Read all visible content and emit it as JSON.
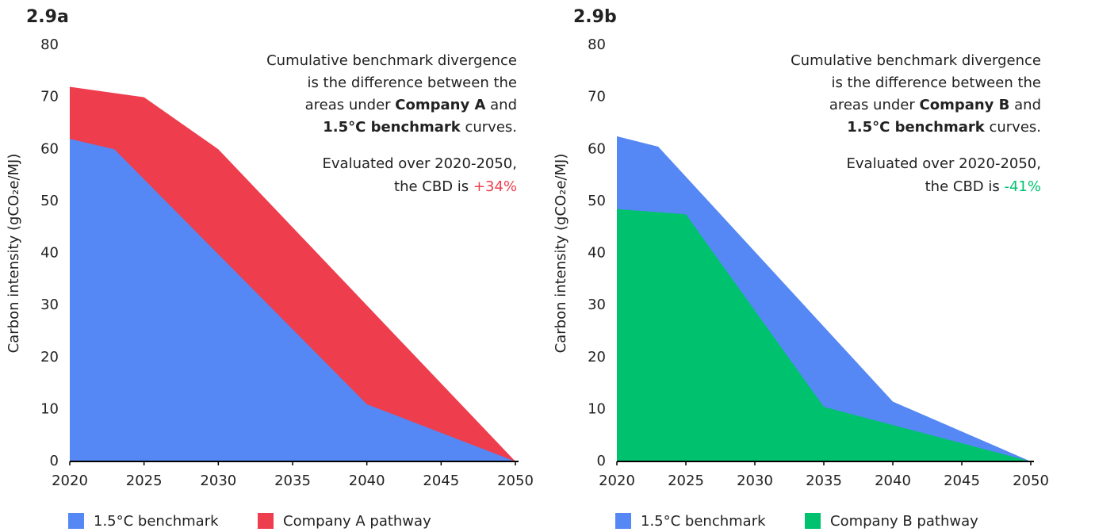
{
  "chart_data": [
    {
      "type": "area",
      "title": "2.9a",
      "ylabel": "Carbon intensity (gCO₂e/MJ)",
      "xlim": [
        2020,
        2050
      ],
      "xticks": [
        2020,
        2025,
        2030,
        2035,
        2040,
        2045,
        2050
      ],
      "ylim": [
        0,
        80
      ],
      "yticks": [
        0,
        10,
        20,
        30,
        40,
        50,
        60,
        70,
        80
      ],
      "series": [
        {
          "name": "1.5°C benchmark",
          "color": "#5588f5",
          "x": [
            2020,
            2023,
            2040,
            2050
          ],
          "values": [
            62,
            60,
            11,
            0
          ]
        },
        {
          "name": "Company A pathway",
          "color": "#ee3d4d",
          "x": [
            2020,
            2025,
            2030,
            2040,
            2050
          ],
          "values": [
            72,
            70,
            60,
            30,
            0
          ]
        }
      ],
      "annotation": [
        [
          {
            "text": "Cumulative benchmark divergence"
          }
        ],
        [
          {
            "text": "is the difference between the"
          }
        ],
        [
          {
            "text": "areas under "
          },
          {
            "text": "Company A",
            "bold": true
          },
          {
            "text": " and"
          }
        ],
        [
          {
            "text": "1.5°C benchmark",
            "bold": true
          },
          {
            "text": " curves."
          }
        ],
        [
          {
            "text": "Evaluated over 2020-2050,"
          }
        ],
        [
          {
            "text": "the CBD is "
          },
          {
            "text": "+34%",
            "color": "#ee3d4d"
          }
        ]
      ]
    },
    {
      "type": "area",
      "title": "2.9b",
      "ylabel": "Carbon intensity (gCO₂e/MJ)",
      "xlim": [
        2020,
        2050
      ],
      "xticks": [
        2020,
        2025,
        2030,
        2035,
        2040,
        2045,
        2050
      ],
      "ylim": [
        0,
        80
      ],
      "yticks": [
        0,
        10,
        20,
        30,
        40,
        50,
        60,
        70,
        80
      ],
      "series": [
        {
          "name": "1.5°C benchmark",
          "color": "#5588f5",
          "x": [
            2020,
            2023,
            2040,
            2050
          ],
          "values": [
            62.5,
            60.5,
            11.5,
            0
          ]
        },
        {
          "name": "Company B pathway",
          "color": "#00c26e",
          "x": [
            2020,
            2025,
            2035,
            2050
          ],
          "values": [
            48.5,
            47.5,
            10.5,
            0
          ]
        }
      ],
      "annotation": [
        [
          {
            "text": "Cumulative benchmark divergence"
          }
        ],
        [
          {
            "text": "is the difference between the"
          }
        ],
        [
          {
            "text": "areas under "
          },
          {
            "text": "Company B",
            "bold": true
          },
          {
            "text": " and"
          }
        ],
        [
          {
            "text": "1.5°C benchmark",
            "bold": true
          },
          {
            "text": " curves."
          }
        ],
        [
          {
            "text": "Evaluated over 2020-2050,"
          }
        ],
        [
          {
            "text": "the CBD is "
          },
          {
            "text": "-41%",
            "color": "#00c26e"
          }
        ]
      ]
    }
  ]
}
